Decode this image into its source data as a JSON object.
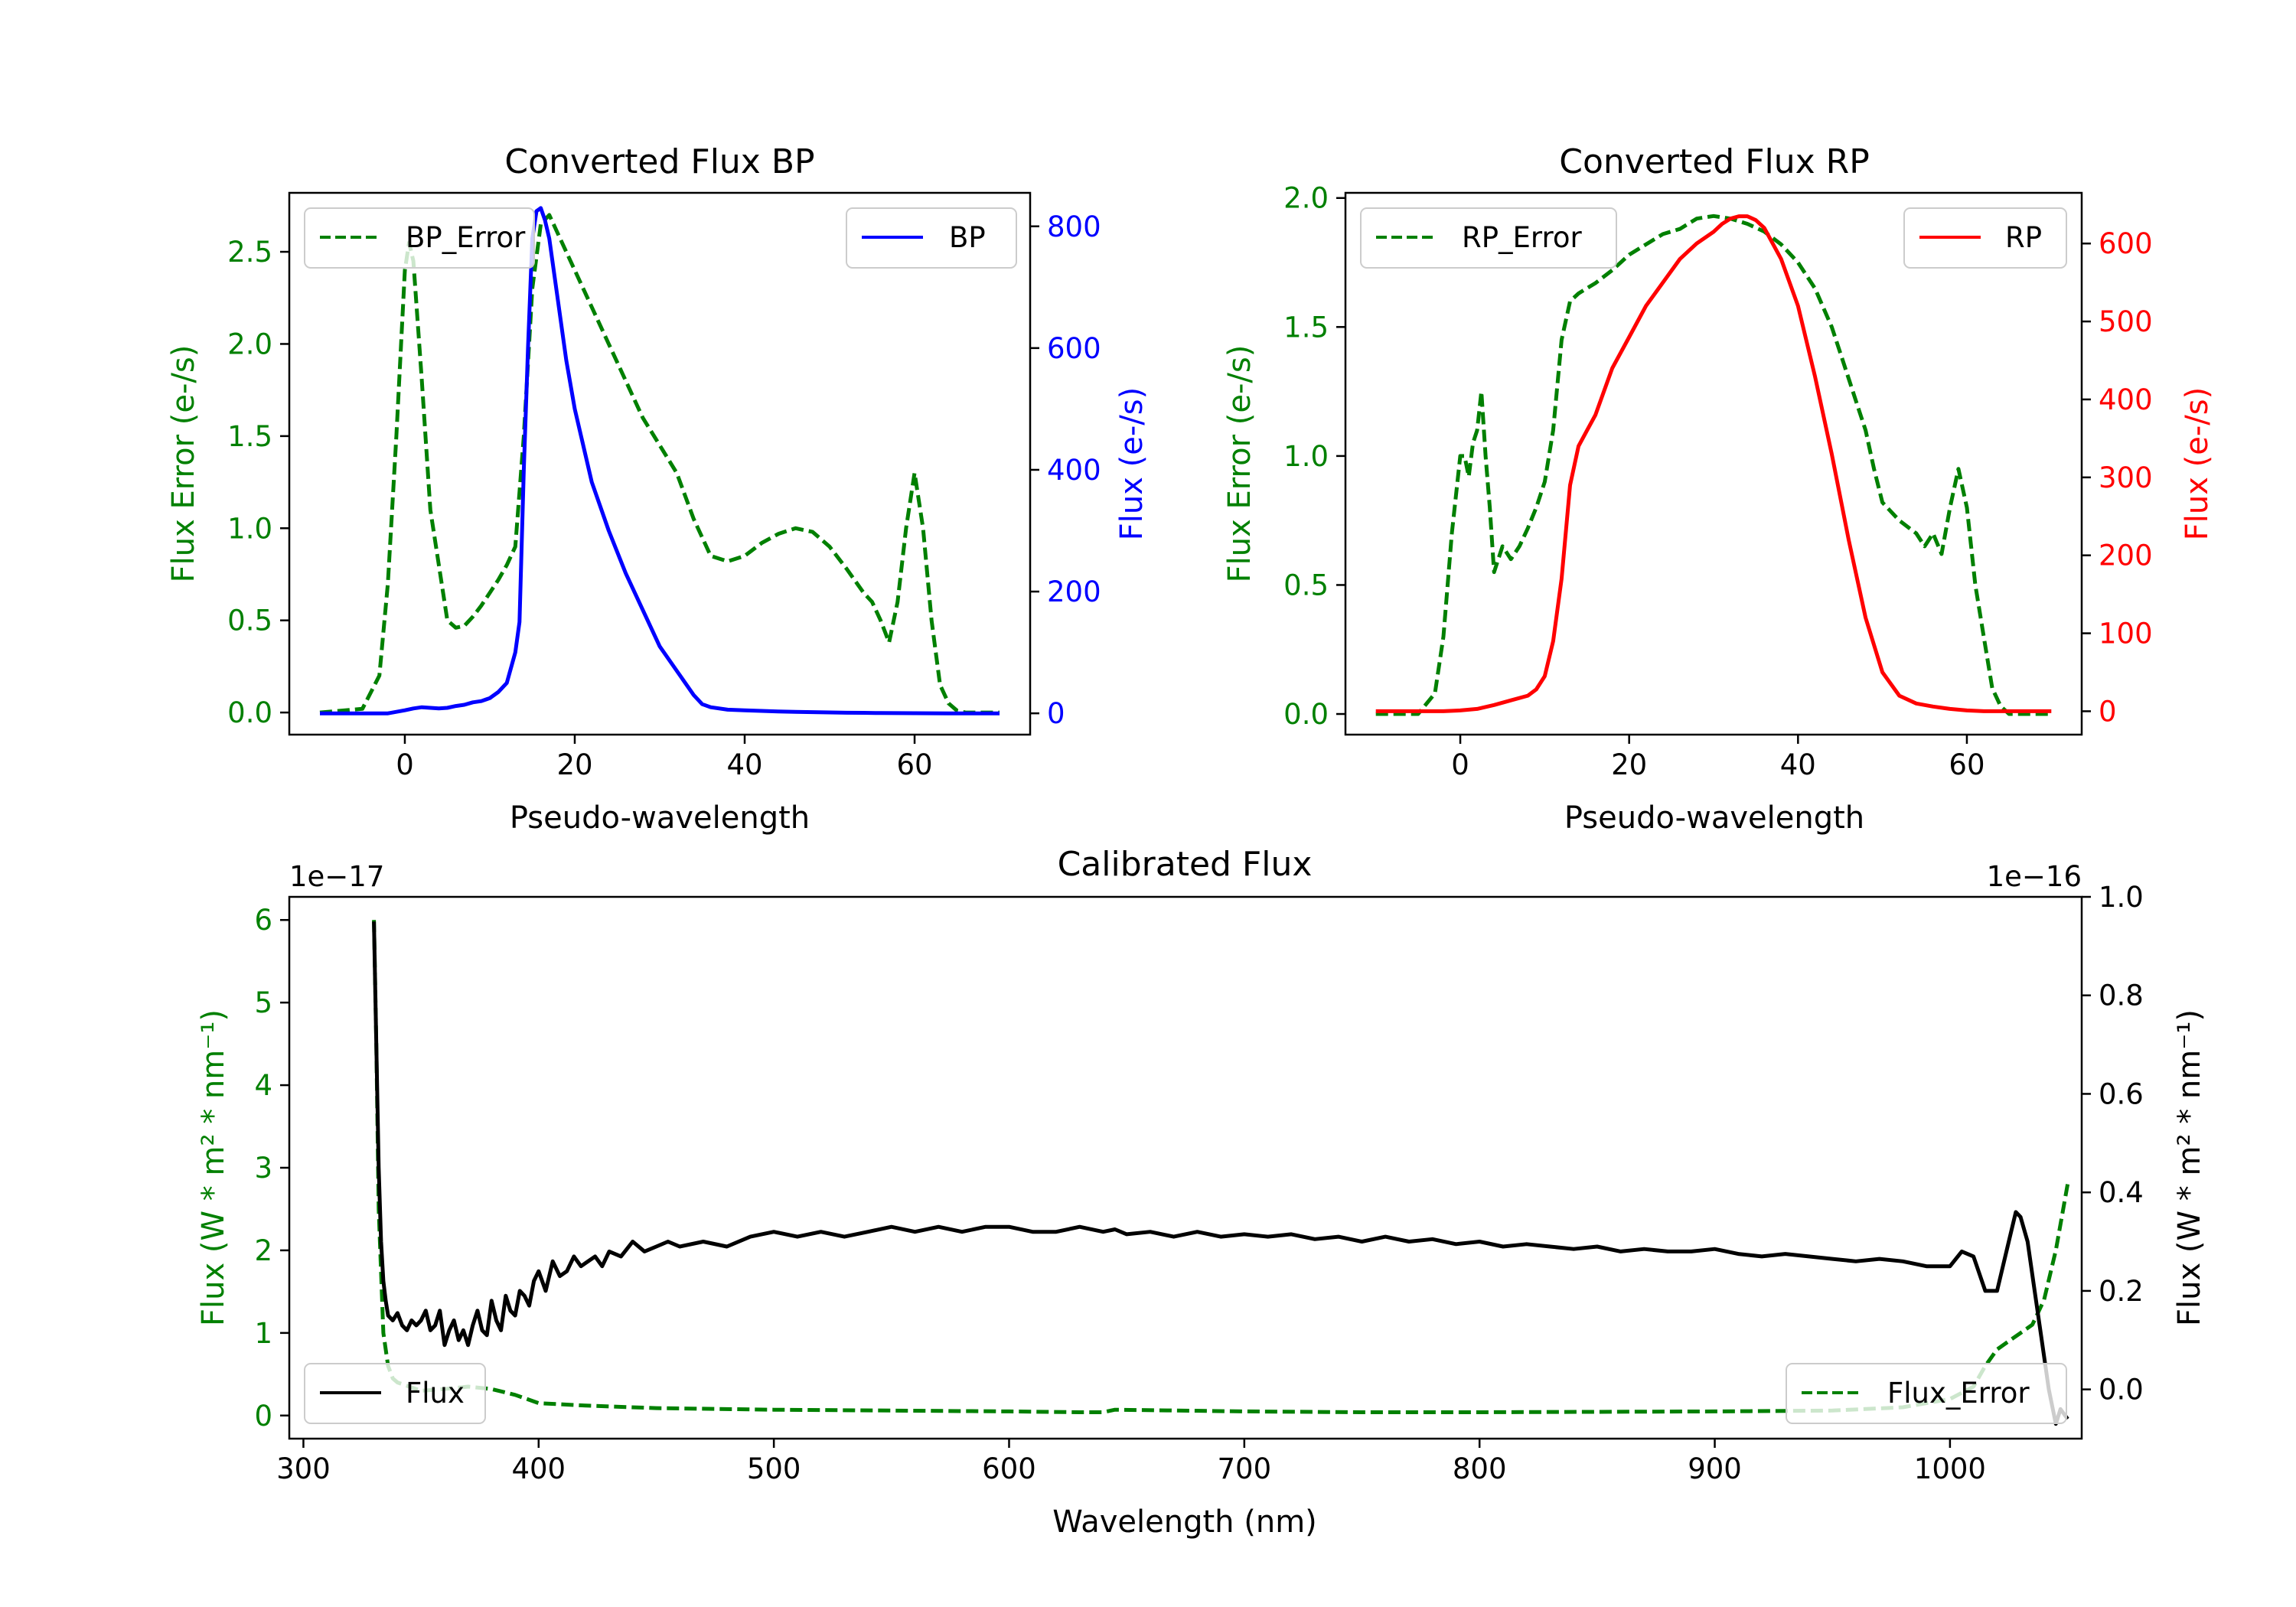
{
  "colors": {
    "green": "#008000",
    "blue": "#0000ff",
    "red": "#ff0000",
    "black": "#000000"
  },
  "chart_data": [
    {
      "id": "bp",
      "type": "line",
      "title": "Converted Flux BP",
      "xlabel": "Pseudo-wavelength",
      "ylabel_left": "Flux Error (e-/s)",
      "ylabel_right": "Flux (e-/s)",
      "xlim": [
        -13.6,
        73.6
      ],
      "ylim_left": [
        -0.12,
        2.82
      ],
      "ylim_right": [
        -35,
        855
      ],
      "xticks": [
        0,
        20,
        40,
        60
      ],
      "yticks_left": [
        "0.0",
        "0.5",
        "1.0",
        "1.5",
        "2.0",
        "2.5"
      ],
      "yticks_right": [
        "0",
        "200",
        "400",
        "600",
        "800"
      ],
      "legend_left_label": "BP_Error",
      "legend_right_label": "BP",
      "series": [
        {
          "name": "BP_Error",
          "axis": "left",
          "style": "dashed",
          "color": "green",
          "x": [
            -10,
            -5,
            -3,
            -2,
            -1,
            0,
            0.5,
            1,
            2,
            3,
            4,
            5,
            6,
            7,
            8,
            9,
            10,
            11,
            12,
            13,
            14,
            15,
            16,
            17,
            18,
            19,
            20,
            22,
            24,
            26,
            28,
            30,
            32,
            34,
            36,
            38,
            40,
            42,
            44,
            46,
            48,
            50,
            52,
            54,
            55,
            56,
            57,
            58,
            59,
            60,
            61,
            62,
            63,
            64,
            65,
            66,
            68,
            70
          ],
          "y": [
            0,
            0.02,
            0.2,
            0.7,
            1.5,
            2.4,
            2.55,
            2.45,
            1.8,
            1.1,
            0.8,
            0.5,
            0.46,
            0.47,
            0.52,
            0.58,
            0.65,
            0.72,
            0.8,
            0.9,
            1.5,
            2.3,
            2.65,
            2.7,
            2.6,
            2.5,
            2.4,
            2.2,
            2.0,
            1.8,
            1.6,
            1.45,
            1.3,
            1.05,
            0.85,
            0.82,
            0.85,
            0.92,
            0.97,
            1.0,
            0.98,
            0.9,
            0.78,
            0.65,
            0.6,
            0.5,
            0.38,
            0.6,
            1.0,
            1.3,
            1.0,
            0.5,
            0.15,
            0.05,
            0.01,
            0,
            0,
            0
          ]
        },
        {
          "name": "BP",
          "axis": "right",
          "style": "solid",
          "color": "blue",
          "x": [
            -10,
            -5,
            -2,
            0,
            1,
            2,
            3,
            4,
            5,
            6,
            7,
            8,
            9,
            10,
            11,
            12,
            13,
            13.5,
            14,
            14.5,
            15,
            15.5,
            16,
            16.5,
            17,
            18,
            19,
            20,
            22,
            24,
            26,
            28,
            30,
            32,
            34,
            35,
            36,
            38,
            40,
            42,
            44,
            46,
            48,
            50,
            52,
            54,
            56,
            58,
            60,
            62,
            64,
            66,
            68,
            70
          ],
          "y": [
            0,
            0,
            0,
            5,
            8,
            10,
            9,
            8,
            9,
            12,
            14,
            18,
            20,
            25,
            35,
            50,
            100,
            150,
            400,
            600,
            780,
            825,
            830,
            810,
            780,
            680,
            580,
            500,
            380,
            300,
            230,
            170,
            110,
            70,
            30,
            15,
            10,
            6,
            5,
            4,
            3,
            2.5,
            2,
            1.5,
            1,
            0.8,
            0.5,
            0.3,
            0.2,
            0.1,
            0,
            0,
            0,
            0
          ]
        }
      ]
    },
    {
      "id": "rp",
      "type": "line",
      "title": "Converted Flux RP",
      "xlabel": "Pseudo-wavelength",
      "ylabel_left": "Flux Error (e-/s)",
      "ylabel_right": "Flux (e-/s)",
      "xlim": [
        -13.6,
        73.6
      ],
      "ylim_left": [
        -0.08,
        2.02
      ],
      "ylim_right": [
        -30,
        665
      ],
      "xticks": [
        0,
        20,
        40,
        60
      ],
      "yticks_left": [
        "0.0",
        "0.5",
        "1.0",
        "1.5",
        "2.0"
      ],
      "yticks_right": [
        "0",
        "100",
        "200",
        "300",
        "400",
        "500",
        "600"
      ],
      "legend_left_label": "RP_Error",
      "legend_right_label": "RP",
      "series": [
        {
          "name": "RP_Error",
          "axis": "left",
          "style": "dashed",
          "color": "green",
          "x": [
            -10,
            -5,
            -3,
            -2,
            -1,
            0,
            0.5,
            1,
            1.5,
            2,
            2.5,
            3,
            3.5,
            4,
            5,
            6,
            7,
            8,
            9,
            10,
            11,
            12,
            13,
            14,
            15,
            16,
            18,
            20,
            22,
            24,
            26,
            28,
            30,
            32,
            34,
            36,
            38,
            40,
            42,
            44,
            45,
            46,
            47,
            48,
            49,
            50,
            52,
            54,
            55,
            56,
            57,
            58,
            59,
            60,
            61,
            62,
            63,
            64,
            65,
            66,
            68,
            70
          ],
          "y": [
            0,
            0,
            0.08,
            0.3,
            0.7,
            1.0,
            1.0,
            0.92,
            1.05,
            1.1,
            1.25,
            1.0,
            0.8,
            0.55,
            0.65,
            0.6,
            0.65,
            0.72,
            0.8,
            0.9,
            1.1,
            1.45,
            1.6,
            1.63,
            1.65,
            1.67,
            1.72,
            1.78,
            1.82,
            1.86,
            1.88,
            1.92,
            1.93,
            1.92,
            1.9,
            1.87,
            1.82,
            1.75,
            1.65,
            1.5,
            1.4,
            1.3,
            1.2,
            1.1,
            0.95,
            0.82,
            0.75,
            0.7,
            0.65,
            0.7,
            0.62,
            0.8,
            0.95,
            0.8,
            0.5,
            0.3,
            0.1,
            0.03,
            0,
            0,
            0,
            0
          ]
        },
        {
          "name": "RP",
          "axis": "right",
          "style": "solid",
          "color": "red",
          "x": [
            -10,
            -5,
            -2,
            0,
            2,
            4,
            6,
            8,
            9,
            10,
            11,
            12,
            13,
            14,
            15,
            16,
            18,
            20,
            22,
            24,
            26,
            28,
            30,
            31,
            32,
            33,
            34,
            35,
            36,
            38,
            40,
            42,
            44,
            46,
            48,
            50,
            52,
            54,
            56,
            58,
            60,
            62,
            64,
            66,
            68,
            70
          ],
          "y": [
            0,
            0,
            0,
            1,
            3,
            8,
            14,
            20,
            28,
            45,
            90,
            170,
            290,
            340,
            360,
            380,
            440,
            480,
            520,
            550,
            580,
            600,
            615,
            625,
            632,
            635,
            635,
            630,
            620,
            580,
            520,
            430,
            330,
            220,
            120,
            50,
            20,
            10,
            6,
            3,
            1,
            0,
            0,
            0,
            0,
            0
          ]
        }
      ]
    },
    {
      "id": "cal",
      "type": "line",
      "title": "Calibrated Flux",
      "xlabel": "Wavelength (nm)",
      "ylabel_left": "Flux (W * m² * nm⁻¹)",
      "ylabel_right": "Flux (W * m² * nm⁻¹)",
      "offset_left": "1e−17",
      "offset_right": "1e−16",
      "xlim": [
        294,
        1056
      ],
      "ylim_left": [
        -0.28,
        6.28
      ],
      "ylim_right": [
        -0.1,
        1.0
      ],
      "xticks": [
        300,
        400,
        500,
        600,
        700,
        800,
        900,
        1000
      ],
      "yticks_left": [
        "0",
        "1",
        "2",
        "3",
        "4",
        "5",
        "6"
      ],
      "yticks_right": [
        "0.0",
        "0.2",
        "0.4",
        "0.6",
        "0.8",
        "1.0"
      ],
      "legend_left_label": "Flux",
      "legend_right_label": "Flux_Error",
      "series": [
        {
          "name": "Flux_Error",
          "axis": "left",
          "style": "dashed",
          "color": "green",
          "x": [
            330,
            331,
            332,
            334,
            336,
            338,
            340,
            345,
            350,
            360,
            370,
            380,
            390,
            400,
            420,
            450,
            500,
            550,
            600,
            630,
            640,
            645,
            700,
            750,
            800,
            900,
            950,
            980,
            1000,
            1010,
            1015,
            1020,
            1025,
            1030,
            1035,
            1040,
            1045,
            1050
          ],
          "y": [
            6.0,
            4.5,
            2.5,
            1.0,
            0.6,
            0.45,
            0.4,
            0.35,
            0.3,
            0.32,
            0.35,
            0.32,
            0.25,
            0.15,
            0.12,
            0.09,
            0.07,
            0.06,
            0.05,
            0.04,
            0.04,
            0.07,
            0.05,
            0.04,
            0.04,
            0.05,
            0.06,
            0.1,
            0.2,
            0.35,
            0.6,
            0.8,
            0.9,
            1.0,
            1.1,
            1.4,
            2.0,
            2.8
          ]
        },
        {
          "name": "Flux",
          "axis": "right",
          "style": "solid",
          "color": "black",
          "x": [
            330,
            331,
            332,
            333,
            334,
            335,
            336,
            338,
            340,
            342,
            344,
            346,
            348,
            350,
            352,
            354,
            356,
            358,
            360,
            362,
            364,
            366,
            368,
            370,
            372,
            374,
            376,
            378,
            380,
            382,
            384,
            386,
            388,
            390,
            392,
            394,
            396,
            398,
            400,
            403,
            406,
            409,
            412,
            415,
            418,
            421,
            424,
            427,
            430,
            435,
            440,
            445,
            450,
            455,
            460,
            470,
            480,
            490,
            500,
            510,
            520,
            530,
            540,
            550,
            560,
            570,
            580,
            590,
            600,
            610,
            620,
            630,
            640,
            645,
            650,
            660,
            670,
            680,
            690,
            700,
            710,
            720,
            730,
            740,
            750,
            760,
            770,
            780,
            790,
            800,
            810,
            820,
            830,
            840,
            850,
            860,
            870,
            880,
            890,
            900,
            910,
            920,
            930,
            940,
            950,
            960,
            970,
            980,
            990,
            1000,
            1005,
            1010,
            1015,
            1020,
            1025,
            1028,
            1030,
            1033,
            1036,
            1039,
            1042,
            1045,
            1047,
            1050
          ],
          "y": [
            0.95,
            0.7,
            0.45,
            0.3,
            0.22,
            0.18,
            0.15,
            0.14,
            0.155,
            0.13,
            0.12,
            0.14,
            0.13,
            0.14,
            0.16,
            0.12,
            0.13,
            0.16,
            0.09,
            0.12,
            0.14,
            0.1,
            0.12,
            0.09,
            0.13,
            0.16,
            0.12,
            0.11,
            0.18,
            0.14,
            0.12,
            0.19,
            0.16,
            0.15,
            0.2,
            0.19,
            0.17,
            0.22,
            0.24,
            0.2,
            0.26,
            0.23,
            0.24,
            0.27,
            0.25,
            0.26,
            0.27,
            0.25,
            0.28,
            0.27,
            0.3,
            0.28,
            0.29,
            0.3,
            0.29,
            0.3,
            0.29,
            0.31,
            0.32,
            0.31,
            0.32,
            0.31,
            0.32,
            0.33,
            0.32,
            0.33,
            0.32,
            0.33,
            0.33,
            0.32,
            0.32,
            0.33,
            0.32,
            0.325,
            0.315,
            0.32,
            0.31,
            0.32,
            0.31,
            0.315,
            0.31,
            0.315,
            0.305,
            0.31,
            0.3,
            0.31,
            0.3,
            0.305,
            0.295,
            0.3,
            0.29,
            0.295,
            0.29,
            0.285,
            0.29,
            0.28,
            0.285,
            0.28,
            0.28,
            0.285,
            0.275,
            0.27,
            0.275,
            0.27,
            0.265,
            0.26,
            0.265,
            0.26,
            0.25,
            0.25,
            0.28,
            0.27,
            0.2,
            0.2,
            0.3,
            0.36,
            0.35,
            0.3,
            0.2,
            0.1,
            0.0,
            -0.07,
            -0.04,
            -0.06
          ]
        }
      ]
    }
  ]
}
